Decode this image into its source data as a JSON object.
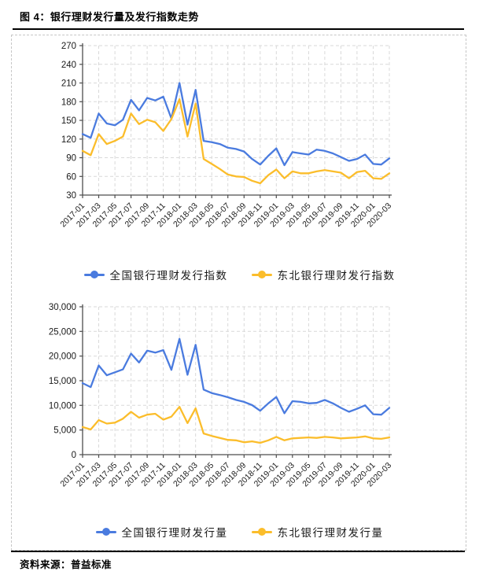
{
  "page": {
    "title": "图 4：银行理财发行量及发行指数走势",
    "source_label": "资料来源：",
    "source_value": "普益标准"
  },
  "colors": {
    "national_series": "#4A7BDF",
    "northeast_series": "#FBBD2B",
    "gridline": "#D9D9D9",
    "axis": "#4D4D4D",
    "tick_text": "#1A1A1A",
    "frame_dash": "#C6C6C6",
    "divider": "#000000"
  },
  "chart_data": [
    {
      "type": "line",
      "title": "",
      "xlabel": "",
      "ylabel": "",
      "grid": true,
      "legend_position": "bottom",
      "ylim": [
        30,
        270
      ],
      "yticks": [
        30,
        60,
        90,
        120,
        150,
        180,
        210,
        240,
        270
      ],
      "ytick_labels": [
        "30",
        "60",
        "90",
        "120",
        "150",
        "180",
        "210",
        "240",
        "270"
      ],
      "x_tick_every": 2,
      "months": [
        "2017-01",
        "2017-02",
        "2017-03",
        "2017-04",
        "2017-05",
        "2017-06",
        "2017-07",
        "2017-08",
        "2017-09",
        "2017-10",
        "2017-11",
        "2017-12",
        "2018-01",
        "2018-02",
        "2018-03",
        "2018-04",
        "2018-05",
        "2018-06",
        "2018-07",
        "2018-08",
        "2018-09",
        "2018-10",
        "2018-11",
        "2018-12",
        "2019-01",
        "2019-02",
        "2019-03",
        "2019-04",
        "2019-05",
        "2019-06",
        "2019-07",
        "2019-08",
        "2019-09",
        "2019-10",
        "2019-11",
        "2019-12",
        "2020-01",
        "2020-02",
        "2020-03"
      ],
      "series": [
        {
          "name": "全国银行理财发行指数",
          "color": "#4A7BDF",
          "values": [
            128,
            122,
            161,
            145,
            142,
            151,
            183,
            166,
            186,
            182,
            188,
            153,
            210,
            143,
            199,
            117,
            115,
            112,
            106,
            104,
            100,
            88,
            79,
            93,
            105,
            78,
            99,
            97,
            95,
            103,
            101,
            97,
            91,
            85,
            88,
            95,
            80,
            79,
            89
          ]
        },
        {
          "name": "东北银行理财发行指数",
          "color": "#FBBD2B",
          "values": [
            101,
            94,
            128,
            112,
            117,
            124,
            161,
            144,
            151,
            147,
            133,
            152,
            184,
            124,
            177,
            88,
            80,
            72,
            63,
            60,
            59,
            53,
            49,
            62,
            71,
            57,
            68,
            65,
            65,
            68,
            70,
            68,
            66,
            57,
            67,
            69,
            57,
            56,
            65
          ]
        }
      ]
    },
    {
      "type": "line",
      "title": "",
      "xlabel": "",
      "ylabel": "",
      "grid": true,
      "legend_position": "bottom",
      "ylim": [
        0,
        30000
      ],
      "yticks": [
        0,
        5000,
        10000,
        15000,
        20000,
        25000,
        30000
      ],
      "ytick_labels": [
        "0",
        "5,000",
        "10,000",
        "15,000",
        "20,000",
        "25,000",
        "30,000"
      ],
      "x_tick_every": 2,
      "months": [
        "2017-01",
        "2017-02",
        "2017-03",
        "2017-04",
        "2017-05",
        "2017-06",
        "2017-07",
        "2017-08",
        "2017-09",
        "2017-10",
        "2017-11",
        "2017-12",
        "2018-01",
        "2018-02",
        "2018-03",
        "2018-04",
        "2018-05",
        "2018-06",
        "2018-07",
        "2018-08",
        "2018-09",
        "2018-10",
        "2018-11",
        "2018-12",
        "2019-01",
        "2019-02",
        "2019-03",
        "2019-04",
        "2019-05",
        "2019-06",
        "2019-07",
        "2019-08",
        "2019-09",
        "2019-10",
        "2019-11",
        "2019-12",
        "2020-01",
        "2020-02",
        "2020-03"
      ],
      "series": [
        {
          "name": "全国银行理财发行量",
          "color": "#4A7BDF",
          "values": [
            14500,
            13700,
            18100,
            16100,
            16700,
            17300,
            20500,
            18700,
            21100,
            20700,
            21200,
            17200,
            23500,
            16200,
            22300,
            13200,
            12500,
            12100,
            11650,
            11100,
            10700,
            10050,
            8900,
            10400,
            11700,
            8400,
            10850,
            10700,
            10400,
            10500,
            11100,
            10400,
            9500,
            8700,
            9300,
            10000,
            8200,
            8100,
            9500
          ]
        },
        {
          "name": "东北银行理财发行量",
          "color": "#FBBD2B",
          "values": [
            5600,
            5100,
            7000,
            6300,
            6500,
            7300,
            8700,
            7500,
            8100,
            8300,
            7100,
            7700,
            9700,
            6400,
            9400,
            4300,
            3800,
            3400,
            3000,
            2900,
            2500,
            2700,
            2400,
            2900,
            3600,
            2900,
            3300,
            3400,
            3500,
            3400,
            3600,
            3500,
            3300,
            3400,
            3500,
            3700,
            3300,
            3200,
            3500
          ]
        }
      ]
    }
  ]
}
